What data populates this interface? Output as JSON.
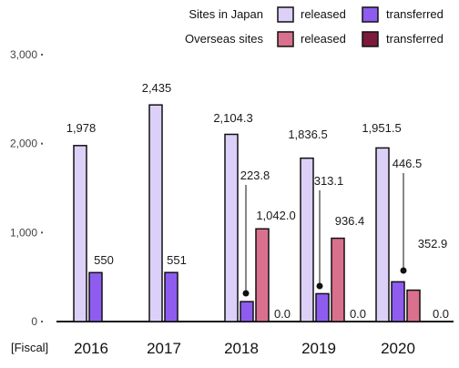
{
  "chart_data": {
    "type": "bar",
    "x_unit_label": "[Fiscal]",
    "categories": [
      "2016",
      "2017",
      "2018",
      "2019",
      "2020"
    ],
    "yticks": [
      0,
      1000,
      2000,
      3000
    ],
    "ytick_labels": [
      "0",
      "1,000",
      "2,000",
      "3,000"
    ],
    "ylim": [
      0,
      3000
    ],
    "grid": false,
    "legend_position": "top-right",
    "legend": {
      "rows": [
        {
          "group": "Sites in Japan",
          "released": "released",
          "transferred": "transferred"
        },
        {
          "group": "Overseas sites",
          "released": "released",
          "transferred": "transferred"
        }
      ]
    },
    "series": [
      {
        "key": "japan_released",
        "color": "#dcd0f8",
        "values": [
          1978,
          2435,
          2104.3,
          1836.5,
          1951.5
        ],
        "labels": [
          "1,978",
          "2,435",
          "2,104.3",
          "1,836.5",
          "1,951.5"
        ]
      },
      {
        "key": "japan_transferred",
        "color": "#8f5cf0",
        "values": [
          550,
          551,
          223.8,
          313.1,
          446.5
        ],
        "labels": [
          "550",
          "551",
          "223.8",
          "313.1",
          "446.5"
        ]
      },
      {
        "key": "overseas_released",
        "color": "#d9708e",
        "values": [
          null,
          null,
          1042.0,
          936.4,
          352.9
        ],
        "labels": [
          "",
          "",
          "1,042.0",
          "936.4",
          "352.9"
        ]
      },
      {
        "key": "overseas_transferred",
        "color": "#7c1a3c",
        "values": [
          null,
          null,
          0.0,
          0.0,
          0.0
        ],
        "labels": [
          "",
          "",
          "0.0",
          "0.0",
          "0.0"
        ]
      }
    ]
  }
}
